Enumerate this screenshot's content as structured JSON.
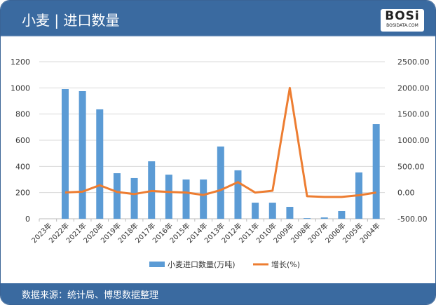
{
  "header": {
    "title": "小麦 | 进口数量",
    "logo_text": "BOSi",
    "logo_sub": "BOSIDATA.COM"
  },
  "footer": {
    "source": "数据来源：统计局、博思数据整理"
  },
  "colors": {
    "bar": "#5b9bd5",
    "line": "#ed7d31",
    "header": "#3a6aa0"
  },
  "chart_data": {
    "type": "bar+line",
    "categories": [
      "2023年",
      "2022年",
      "2021年",
      "2020年",
      "2019年",
      "2018年",
      "2017年",
      "2016年",
      "2015年",
      "2014年",
      "2013年",
      "2012年",
      "2011年",
      "2010年",
      "2009年",
      "2008年",
      "2007年",
      "2006年",
      "2005年",
      "2004年"
    ],
    "series": [
      {
        "name": "小麦进口数量(万吨)",
        "type": "bar",
        "axis": "left",
        "values": [
          null,
          991,
          975,
          836,
          348,
          311,
          439,
          337,
          300,
          300,
          552,
          370,
          123,
          123,
          91,
          5,
          10,
          59,
          354,
          723
        ]
      },
      {
        "name": "增长(%)",
        "type": "line",
        "axis": "right",
        "values": [
          null,
          2,
          17,
          140,
          12,
          -29,
          30,
          12,
          0,
          -46,
          49,
          200,
          0,
          35,
          2000,
          -70,
          -83,
          -83,
          -51,
          0
        ]
      }
    ],
    "left_axis": {
      "ylim": [
        0,
        1200
      ],
      "ticks": [
        "0",
        "200",
        "400",
        "600",
        "800",
        "1000",
        "1200"
      ]
    },
    "right_axis": {
      "ylim": [
        -500,
        2500
      ],
      "ticks": [
        "-500.00",
        "0.00",
        "500.00",
        "1000.00",
        "1500.00",
        "2000.00",
        "2500.00"
      ]
    },
    "grid": true,
    "legend": "bottom"
  }
}
